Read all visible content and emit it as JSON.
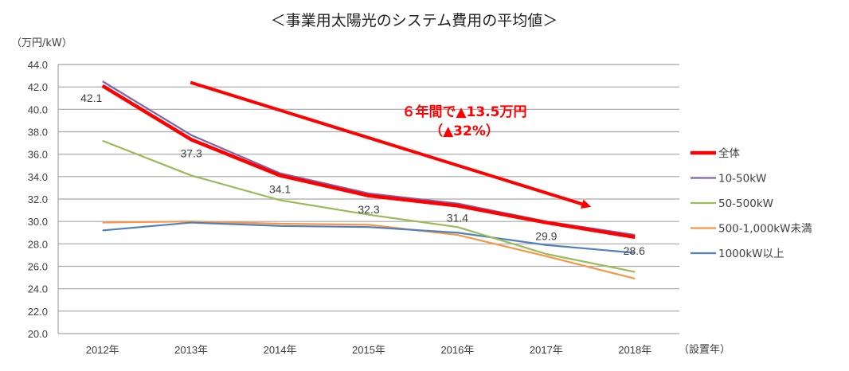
{
  "chart_data": {
    "type": "line",
    "title": "＜事業用太陽光のシステム費用の平均値＞",
    "ylabel": "（万円/kW）",
    "xlabel": "（設置年）",
    "ylim": [
      20.0,
      44.0
    ],
    "ytick_step": 2.0,
    "yticks": [
      "44.0",
      "42.0",
      "40.0",
      "38.0",
      "36.0",
      "34.0",
      "32.0",
      "30.0",
      "28.0",
      "26.0",
      "24.0",
      "22.0",
      "20.0"
    ],
    "categories": [
      "2012年",
      "2013年",
      "2014年",
      "2015年",
      "2016年",
      "2017年",
      "2018年"
    ],
    "grid": true,
    "legend_position": "right",
    "series": [
      {
        "name": "全体",
        "color": "#ff0000",
        "values": [
          42.1,
          37.3,
          34.1,
          32.3,
          31.4,
          29.9,
          28.6
        ],
        "labels": [
          "42.1",
          "37.3",
          "34.1",
          "32.3",
          "31.4",
          "29.9",
          "28.6"
        ]
      },
      {
        "name": "10-50kW",
        "color": "#7f63a8",
        "values": [
          42.5,
          37.7,
          34.3,
          32.5,
          31.6,
          30.0,
          28.8
        ]
      },
      {
        "name": "50-500kW",
        "color": "#9bbb59",
        "values": [
          37.2,
          34.1,
          31.9,
          30.6,
          29.5,
          27.1,
          25.5
        ]
      },
      {
        "name": "500-1,000kW未満",
        "color": "#f79646",
        "values": [
          29.9,
          30.0,
          29.8,
          29.7,
          28.8,
          26.9,
          24.9
        ]
      },
      {
        "name": "1000kW以上",
        "color": "#4f81bd",
        "values": [
          29.2,
          29.9,
          29.6,
          29.5,
          29.0,
          27.9,
          27.2
        ]
      }
    ],
    "annotation": {
      "line1": "６年間で▲13.5万円",
      "line2": "（▲32%）",
      "color": "#ff0000",
      "arrow_from": {
        "category": "2013年",
        "value": 42.4
      },
      "arrow_to": {
        "category": "2018年",
        "value": 31.3
      }
    }
  }
}
